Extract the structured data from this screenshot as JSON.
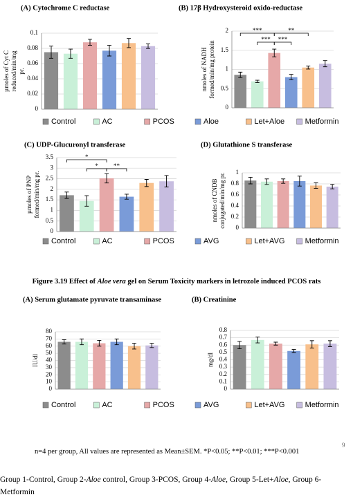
{
  "chart_data": [
    {
      "type": "bar",
      "title": "(A) Cytochrome C reductase",
      "ylabel": [
        "µmoles of Cyt C",
        "reduced/min/mg",
        "pr."
      ],
      "values": [
        0.075,
        0.073,
        0.088,
        0.077,
        0.087,
        0.083
      ],
      "errors": [
        0.008,
        0.006,
        0.004,
        0.007,
        0.006,
        0.003
      ],
      "ylim": [
        0,
        0.1
      ],
      "yticks": [
        0,
        0.02,
        0.04,
        0.06,
        0.08,
        0.1
      ],
      "grid": true
    },
    {
      "type": "bar",
      "title": "(B) 17β Hydroxysteroid oxido-reductase",
      "ylabel": [
        "nmoles of NADH",
        "formed/min/mg protein"
      ],
      "values": [
        0.86,
        0.69,
        1.43,
        0.8,
        1.05,
        1.15
      ],
      "errors": [
        0.07,
        0.03,
        0.1,
        0.07,
        0.04,
        0.08
      ],
      "ylim": [
        0,
        2
      ],
      "yticks": [
        0,
        0.5,
        1,
        1.5,
        2
      ],
      "grid": true,
      "annotations": [
        {
          "from": 0,
          "to": 2,
          "label": "***"
        },
        {
          "from": 2,
          "to": 4,
          "label": "**"
        },
        {
          "from": 1,
          "to": 2,
          "label": "***"
        },
        {
          "from": 2,
          "to": 3,
          "label": "***"
        }
      ]
    },
    {
      "type": "bar",
      "title": "(C) UDP-Glucuronyl transferase",
      "ylabel": [
        "µmoles of PNP",
        "formed/min/mg pr."
      ],
      "values": [
        1.72,
        1.45,
        2.52,
        1.65,
        2.3,
        2.38
      ],
      "errors": [
        0.15,
        0.25,
        0.22,
        0.12,
        0.17,
        0.27
      ],
      "ylim": [
        0,
        3.5
      ],
      "yticks": [
        0,
        0.5,
        1,
        1.5,
        2,
        2.5,
        3,
        3.5
      ],
      "grid": true,
      "annotations": [
        {
          "from": 0,
          "to": 2,
          "label": "*"
        },
        {
          "from": 1,
          "to": 2,
          "label": "*"
        },
        {
          "from": 2,
          "to": 3,
          "label": "**"
        }
      ]
    },
    {
      "type": "bar",
      "title": "(D) Glutathione S transferase",
      "ylabel": [
        "nmoles of CNDB",
        "conjugated/min/mg pr."
      ],
      "values": [
        0.86,
        0.84,
        0.85,
        0.85,
        0.77,
        0.75
      ],
      "errors": [
        0.06,
        0.05,
        0.04,
        0.09,
        0.05,
        0.04
      ],
      "ylim": [
        0,
        1
      ],
      "yticks": [
        0,
        0.2,
        0.4,
        0.6,
        0.8,
        1
      ],
      "grid": true
    },
    {
      "type": "bar",
      "title": "(A) Serum glutamate pyruvate transaminase",
      "ylabel": [
        "IU/dl"
      ],
      "values": [
        66,
        66,
        64,
        66,
        60,
        61
      ],
      "errors": [
        3,
        4,
        4,
        4,
        4,
        3
      ],
      "ylim": [
        0,
        80
      ],
      "yticks": [
        0,
        10,
        20,
        30,
        40,
        50,
        60,
        70,
        80
      ],
      "grid": true
    },
    {
      "type": "bar",
      "title": "(B) Creatinine",
      "ylabel": [
        "mg/dl"
      ],
      "values": [
        0.6,
        0.67,
        0.62,
        0.52,
        0.61,
        0.62
      ],
      "errors": [
        0.05,
        0.04,
        0.02,
        0.02,
        0.05,
        0.04
      ],
      "ylim": [
        0,
        0.8
      ],
      "yticks": [
        0,
        0.1,
        0.2,
        0.3,
        0.4,
        0.5,
        0.6,
        0.7,
        0.8
      ],
      "grid": true
    }
  ],
  "legends": [
    {
      "items": [
        "Control",
        "AC",
        "PCOS",
        "Aloe",
        "Let+Aloe",
        "Metformin"
      ],
      "colors": [
        "#8c8c8c",
        "#c9f0d8",
        "#e6a8a8",
        "#7a9bd8",
        "#f8c08c",
        "#c7bde0"
      ]
    },
    {
      "items": [
        "Control",
        "AC",
        "PCOS",
        "AVG",
        "Let+AVG",
        "Metformin"
      ],
      "colors": [
        "#8c8c8c",
        "#c9f0d8",
        "#e6a8a8",
        "#7a9bd8",
        "#f8c08c",
        "#c7bde0"
      ]
    },
    {
      "items": [
        "Control",
        "AC",
        "PCOS",
        "AVG",
        "Let+AVG",
        "Metformin"
      ],
      "colors": [
        "#8c8c8c",
        "#c9f0d8",
        "#e6a8a8",
        "#7a9bd8",
        "#f8c08c",
        "#c7bde0"
      ]
    }
  ],
  "figure_caption": [
    {
      "text": "Figure 3.19 Effect of "
    },
    {
      "text": "Aloe vera",
      "italic": true
    },
    {
      "text": " gel on Serum Toxicity markers in letrozole induced PCOS rats"
    }
  ],
  "footnote": "n=4 per group, All values are represented as Mean±SEM. *P<0.05; **P<0.01; ***P<0.001",
  "page_number": "9",
  "groups_text": [
    {
      "text": "Group 1-Control, Group 2-"
    },
    {
      "text": "Aloe",
      "italic": true
    },
    {
      "text": " control, Group 3-PCOS, Group 4-"
    },
    {
      "text": "Aloe",
      "italic": true
    },
    {
      "text": ", Group 5-Let+"
    },
    {
      "text": "Aloe",
      "italic": true
    },
    {
      "text": ", Group 6-Metformin"
    }
  ]
}
